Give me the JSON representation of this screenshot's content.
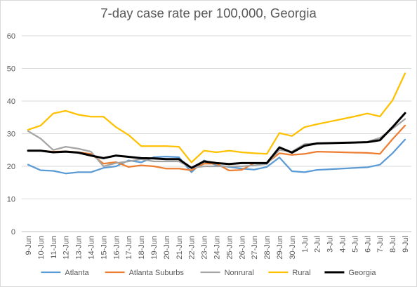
{
  "chart_data": {
    "type": "line",
    "title": "7-day case rate per 100,000, Georgia",
    "xlabel": "",
    "ylabel": "",
    "ylim": [
      0,
      60
    ],
    "yticks": [
      0,
      10,
      20,
      30,
      40,
      50,
      60
    ],
    "grid": "horizontal",
    "legend_position": "bottom",
    "x": [
      "9-Jun",
      "10-Jun",
      "11-Jun",
      "12-Jun",
      "13-Jun",
      "14-Jun",
      "15-Jun",
      "16-Jun",
      "17-Jun",
      "18-Jun",
      "19-Jun",
      "20-Jun",
      "21-Jun",
      "22-Jun",
      "23-Jun",
      "24-Jun",
      "25-Jun",
      "26-Jun",
      "27-Jun",
      "28-Jun",
      "29-Jun",
      "30-Jun",
      "1-Jul",
      "2-Jul",
      "3-Jul",
      "4-Jul",
      "5-Jul",
      "6-Jul",
      "7-Jul",
      "8-Jul",
      "9-Jul"
    ],
    "series": [
      {
        "name": "Atlanta",
        "color": "#5b9bd5",
        "width": 2.25,
        "values": [
          20.5,
          18.8,
          18.6,
          17.8,
          18.2,
          18.2,
          19.5,
          20.0,
          21.8,
          21.2,
          22.8,
          23.0,
          22.8,
          18.2,
          21.8,
          20.3,
          19.8,
          19.3,
          19.0,
          19.8,
          22.7,
          18.5,
          18.2,
          18.9,
          19.1,
          19.3,
          19.5,
          19.7,
          20.5,
          24.0,
          28.2
        ]
      },
      {
        "name": "Atlanta Suburbs",
        "color": "#ed7d31",
        "width": 2.25,
        "values": [
          24.8,
          24.8,
          24.5,
          24.6,
          24.3,
          23.8,
          20.8,
          21.3,
          19.8,
          20.3,
          20.0,
          19.3,
          19.3,
          18.8,
          20.8,
          20.8,
          18.7,
          18.9,
          21.0,
          21.0,
          24.0,
          23.5,
          23.8,
          24.5,
          24.4,
          24.3,
          24.2,
          24.1,
          23.8,
          28.3,
          32.5
        ]
      },
      {
        "name": "Nonrural",
        "color": "#a5a5a5",
        "width": 2.25,
        "values": [
          30.8,
          28.5,
          25.0,
          26.0,
          25.4,
          24.5,
          20.0,
          21.0,
          21.5,
          22.2,
          21.5,
          21.5,
          21.5,
          19.5,
          20.0,
          20.0,
          20.0,
          20.0,
          20.3,
          20.7,
          25.0,
          24.5,
          26.8,
          27.0,
          27.1,
          27.2,
          27.3,
          27.5,
          28.7,
          31.5,
          34.5
        ]
      },
      {
        "name": "Rural",
        "color": "#ffc000",
        "width": 2.25,
        "values": [
          31.2,
          32.5,
          36.2,
          37.0,
          35.8,
          35.2,
          35.2,
          32.0,
          29.6,
          26.2,
          26.2,
          26.2,
          26.0,
          21.2,
          24.8,
          24.3,
          24.8,
          24.3,
          24.0,
          23.8,
          30.2,
          29.3,
          32.0,
          32.9,
          33.7,
          34.5,
          35.3,
          36.2,
          35.3,
          40.2,
          48.5
        ]
      },
      {
        "name": "Georgia",
        "color": "#000000",
        "width": 3.0,
        "values": [
          24.8,
          24.8,
          24.3,
          24.5,
          24.2,
          23.3,
          22.5,
          23.3,
          22.9,
          22.5,
          22.4,
          22.2,
          22.2,
          19.5,
          21.5,
          21.0,
          20.7,
          21.0,
          21.0,
          21.0,
          25.8,
          24.2,
          26.3,
          27.0,
          27.1,
          27.2,
          27.3,
          27.4,
          28.0,
          32.0,
          36.3
        ]
      }
    ]
  }
}
